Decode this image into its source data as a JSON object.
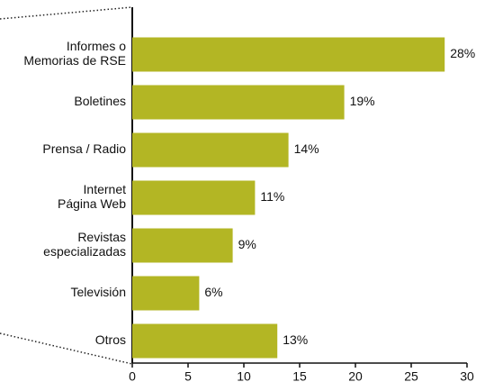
{
  "chart_data": {
    "type": "bar",
    "orientation": "horizontal",
    "categories": [
      [
        "Informes o",
        "Memorias de RSE"
      ],
      [
        "Boletines"
      ],
      [
        "Prensa / Radio"
      ],
      [
        "Internet",
        "Página Web"
      ],
      [
        "Revistas",
        "especializadas"
      ],
      [
        "Televisión"
      ],
      [
        "Otros"
      ]
    ],
    "values": [
      28,
      19,
      14,
      11,
      9,
      6,
      13
    ],
    "value_labels": [
      "28%",
      "19%",
      "14%",
      "11%",
      "9%",
      "6%",
      "13%"
    ],
    "color": "#b3b624",
    "xlim": [
      0,
      30
    ],
    "xticks": [
      0,
      5,
      10,
      15,
      20,
      25,
      30
    ]
  }
}
